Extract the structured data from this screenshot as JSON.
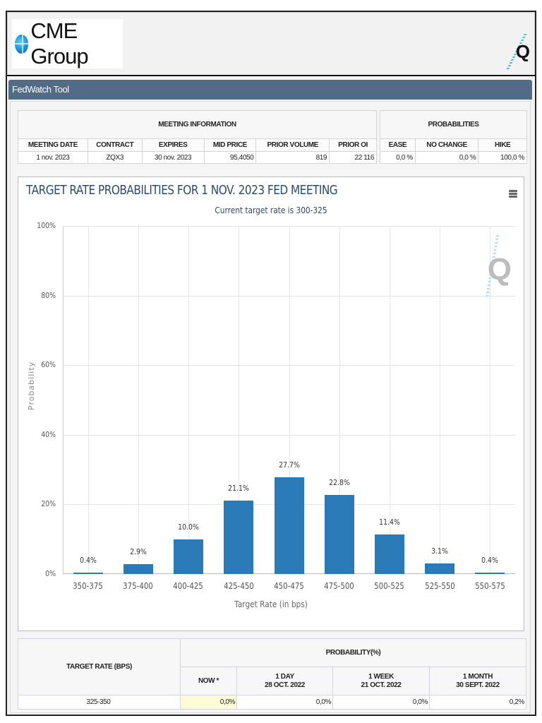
{
  "header": {
    "logo_text": "CME Group",
    "q_logo": "Q"
  },
  "tool_bar": {
    "title": "FedWatch Tool"
  },
  "meeting_info": {
    "group_label": "MEETING INFORMATION",
    "columns": [
      "MEETING DATE",
      "CONTRACT",
      "EXPIRES",
      "MID PRICE",
      "PRIOR VOLUME",
      "PRIOR OI"
    ],
    "row": [
      "1 nov. 2023",
      "ZQX3",
      "30 nov. 2023",
      "95,4050",
      "819",
      "22 116"
    ]
  },
  "probabilities": {
    "group_label": "PROBABILITIES",
    "columns": [
      "EASE",
      "NO CHANGE",
      "HIKE"
    ],
    "row": [
      "0,0 %",
      "0,0 %",
      "100,0 %"
    ]
  },
  "chart": {
    "menu_icon": "hamburger-menu-icon",
    "watermark": "Q"
  },
  "chart_data": {
    "type": "bar",
    "title": "TARGET RATE PROBABILITIES FOR 1 NOV. 2023 FED MEETING",
    "subtitle": "Current target rate is 300-325",
    "xlabel": "Target Rate (in bps)",
    "ylabel": "Probability",
    "categories": [
      "350-375",
      "375-400",
      "400-425",
      "425-450",
      "450-475",
      "475-500",
      "500-525",
      "525-550",
      "550-575"
    ],
    "values": [
      0.4,
      2.9,
      10.0,
      21.1,
      27.7,
      22.8,
      11.4,
      3.1,
      0.4
    ],
    "value_labels": [
      "0.4%",
      "2.9%",
      "10.0%",
      "21.1%",
      "27.7%",
      "22.8%",
      "11.4%",
      "3.1%",
      "0.4%"
    ],
    "yticks": [
      "0%",
      "20%",
      "40%",
      "60%",
      "80%",
      "100%"
    ],
    "ylim": [
      0,
      100
    ],
    "grid": true,
    "bar_color": "#2a7ab8"
  },
  "rate_table": {
    "target_rate_header": "TARGET RATE (BPS)",
    "probability_header": "PROBABILITY(%)",
    "columns": [
      {
        "line1": "NOW *",
        "line2": ""
      },
      {
        "line1": "1 DAY",
        "line2": "28 OCT. 2022"
      },
      {
        "line1": "1 WEEK",
        "line2": "21 OCT. 2022"
      },
      {
        "line1": "1 MONTH",
        "line2": "30 SEPT. 2022"
      }
    ],
    "rows": [
      {
        "rate": "325-350",
        "now": "0,0%",
        "day": "0,0%",
        "week": "0,0%",
        "month": "0,2%"
      }
    ]
  },
  "colors": {
    "toolbar_bg": "#526c88",
    "bar": "#2a7ab8",
    "title_text": "#2d4a6f",
    "now_cell_bg": "#fbfbd6"
  }
}
